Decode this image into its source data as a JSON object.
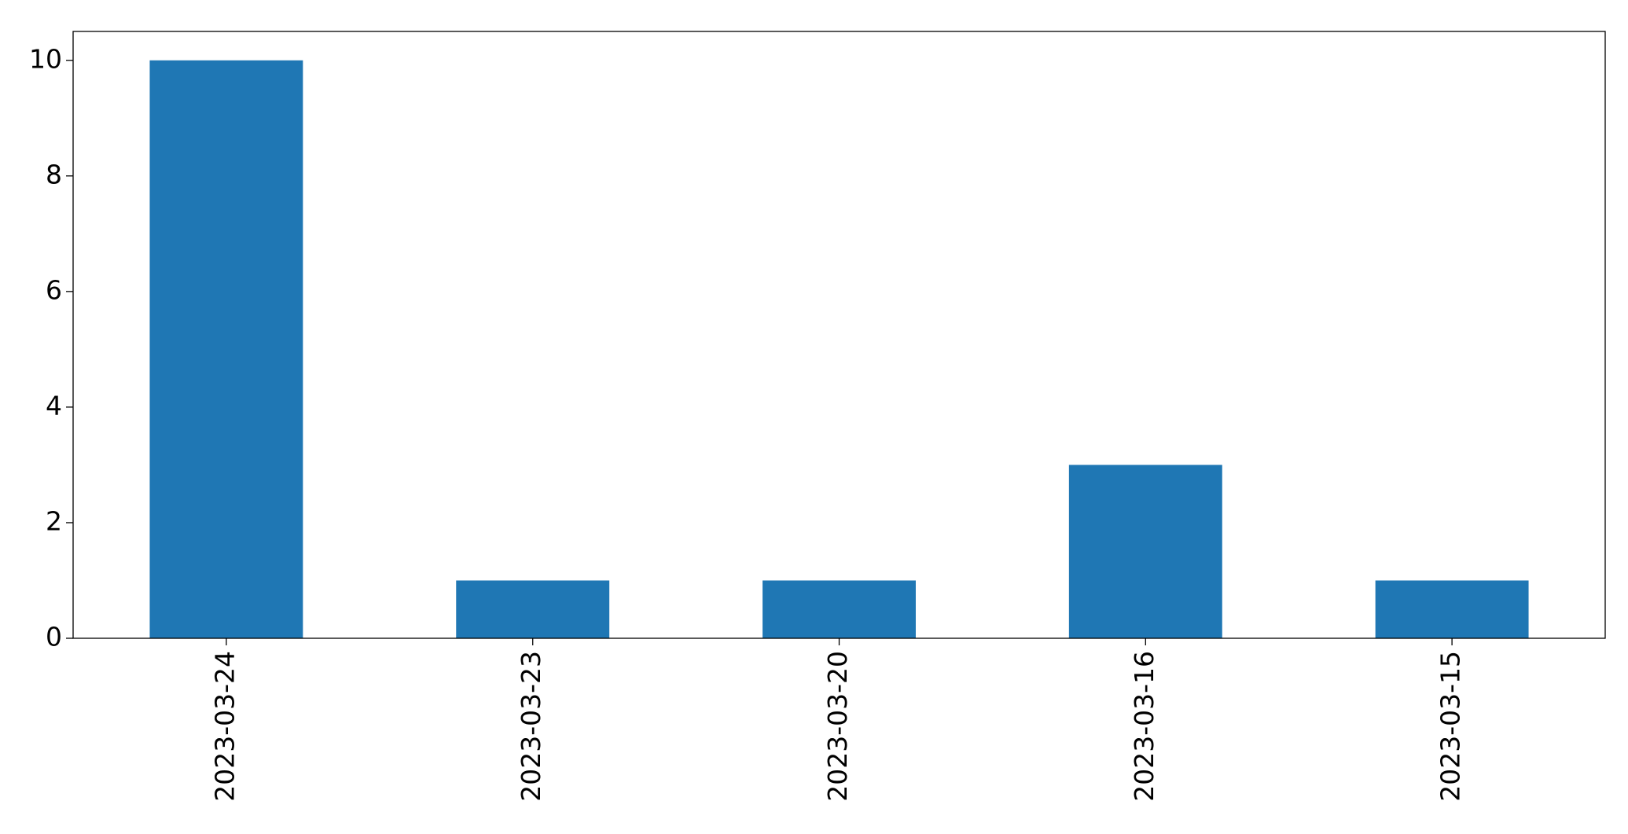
{
  "chart_data": {
    "type": "bar",
    "categories": [
      "2023-03-24",
      "2023-03-23",
      "2023-03-20",
      "2023-03-16",
      "2023-03-15"
    ],
    "values": [
      10,
      1,
      1,
      3,
      1
    ],
    "color": "#1f77b4",
    "ylim": [
      0,
      10.5
    ],
    "yticks": [
      0,
      2,
      4,
      6,
      8,
      10
    ],
    "grid": false
  }
}
